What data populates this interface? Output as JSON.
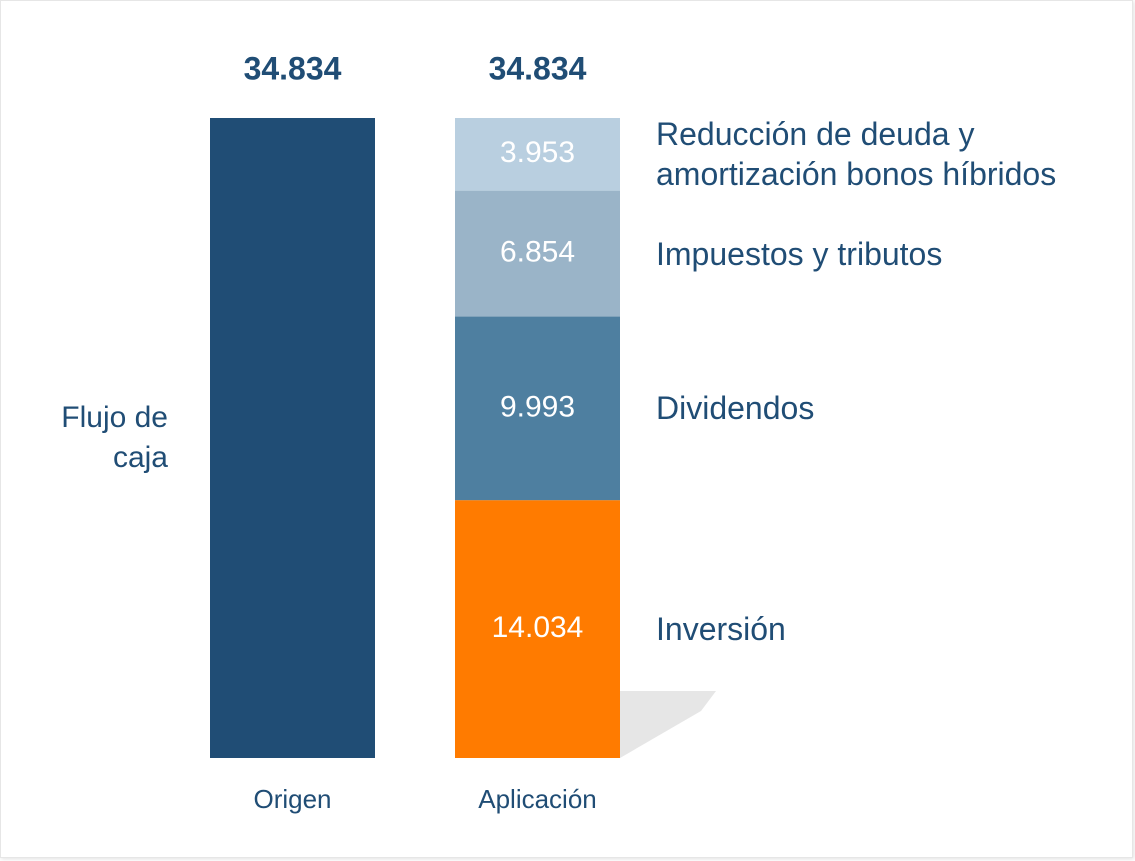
{
  "chart_data": {
    "type": "stacked_bar",
    "categories": [
      "Origen",
      "Aplicación"
    ],
    "totals": {
      "values": [
        34834,
        34834
      ],
      "value_labels": [
        "34.834",
        "34.834"
      ]
    },
    "series": [
      {
        "name": "Flujo de caja",
        "color": "#204d75",
        "values": [
          34834,
          null
        ]
      },
      {
        "name": "Inversión",
        "color": "#ff7b00",
        "values": [
          null,
          14034
        ],
        "value_labels": [
          null,
          "14.034"
        ]
      },
      {
        "name": "Dividendos",
        "color": "#4e7fa0",
        "values": [
          null,
          9993
        ],
        "value_labels": [
          null,
          "9.993"
        ]
      },
      {
        "name": "Impuestos y tributos",
        "color": "#9ab4c8",
        "values": [
          null,
          6854
        ],
        "value_labels": [
          null,
          "6.854"
        ]
      },
      {
        "name": "Reducción de deuda y amortización bonos híbridos",
        "color": "#b9cfe0",
        "values": [
          null,
          3953
        ],
        "value_labels": [
          null,
          "3.953"
        ]
      }
    ]
  }
}
